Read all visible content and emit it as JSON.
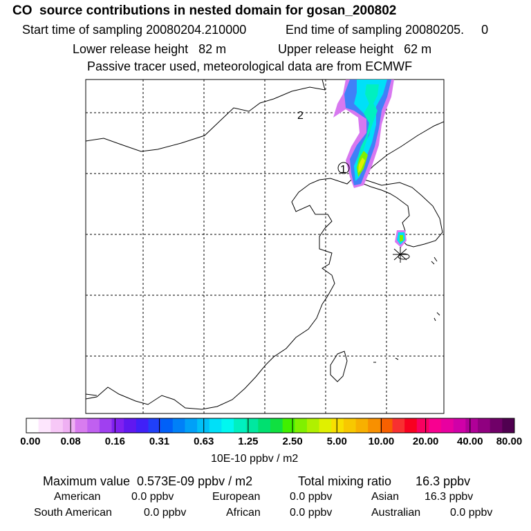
{
  "header": {
    "title": "CO  source contributions in nested domain for gosan_200802",
    "start_label": "Start time of sampling 20080204.210000",
    "end_label": "End time of sampling 20080205.     0",
    "lower_label": "Lower release height   82 m",
    "upper_label": "Upper release height   62 m",
    "tracer_label": "Passive tracer used, meteorological data are from ECMWF"
  },
  "chart_data": {
    "type": "heatmap",
    "title": "CO  source contributions in nested domain for gosan_200802",
    "colorbar": {
      "ticks": [
        "0.00",
        "0.08",
        "0.16",
        "0.31",
        "0.63",
        "1.25",
        "2.50",
        "5.00",
        "10.00",
        "20.00",
        "40.00",
        "80.00"
      ],
      "units": "10E-10 ppbv / m2",
      "colors": [
        "#ffffff",
        "#fde6fd",
        "#f7c8f7",
        "#efb0f3",
        "#d87cef",
        "#c060f0",
        "#a040f0",
        "#8020f0",
        "#6018f0",
        "#4020f8",
        "#2040f8",
        "#0060f8",
        "#0080f8",
        "#00a0f8",
        "#00c0f8",
        "#00e0f8",
        "#00f8f0",
        "#00f0c0",
        "#00e8a0",
        "#00e070",
        "#10e040",
        "#40f000",
        "#80f000",
        "#b0f000",
        "#e0f000",
        "#f8e000",
        "#f8c800",
        "#f8b000",
        "#f89000",
        "#f86000",
        "#f83030",
        "#f80020",
        "#f80060",
        "#f80090",
        "#e800a0",
        "#d000a8",
        "#b00098",
        "#900080",
        "#700068",
        "#500050"
      ]
    },
    "markers": [
      "1",
      "2"
    ],
    "plume_levels": [
      "#d878f0",
      "#4080f8",
      "#00e0f8",
      "#00f0c0",
      "#80f000",
      "#e0f000"
    ],
    "grid": true
  },
  "stats": {
    "max_label": "Maximum value  0.573E-09 ppbv / m2",
    "total_label": "Total mixing ratio       16.3 ppbv",
    "american_label": "American",
    "american_value": "0.0 ppbv",
    "european_label": "European",
    "european_value": "0.0 ppbv",
    "asian_label": "Asian",
    "asian_value": "16.3 ppbv",
    "south_american_label": "South American",
    "south_american_value": "0.0 ppbv",
    "african_label": "African",
    "african_value": "0.0 ppbv",
    "australian_label": "Australian",
    "australian_value": "0.0 ppbv"
  }
}
